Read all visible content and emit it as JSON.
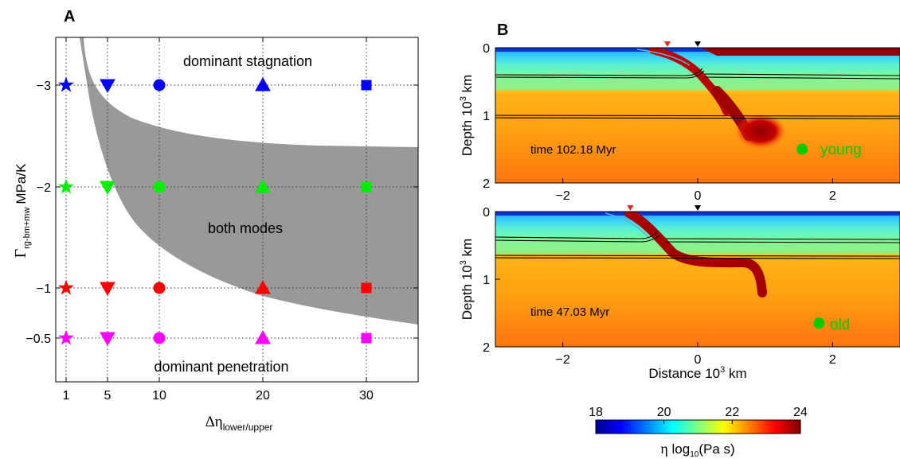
{
  "panel_a": {
    "label": "A",
    "ylabel_symbol": "Γ",
    "ylabel_sub": "rg-bm+mw",
    "ylabel_unit": "MPa/K",
    "xlabel_symbol": "Δη",
    "xlabel_sub": "lower/upper",
    "annotations": [
      "dominant stagnation",
      "both modes",
      "dominant penetration"
    ]
  },
  "panel_b": {
    "label": "B",
    "ylabel_prefix": "Depth 10",
    "ylabel_exp": "3",
    "ylabel_suffix": " km",
    "xlabel_prefix": "Distance 10",
    "xlabel_exp": "3",
    "xlabel_suffix": " km",
    "top": {
      "time_label": "time 102.18 Myr",
      "marker_label": "young"
    },
    "bottom": {
      "time_label": "time 47.03 Myr",
      "marker_label": "old"
    }
  },
  "colorbar": {
    "label_symbol": "η",
    "label_text": " log",
    "label_sub": "10",
    "label_unit": "(Pa s)",
    "ticks": [
      18,
      20,
      22,
      24
    ],
    "range": [
      18,
      24
    ]
  },
  "colors": {
    "blue": "#0000ff",
    "green": "#00ee00",
    "red": "#ff0000",
    "magenta": "#ff00ff",
    "region": "#999999",
    "label_green": "#00cc00"
  },
  "chart_data": [
    {
      "type": "scatter",
      "x_ticks": [
        1,
        5,
        10,
        20,
        30
      ],
      "y_ticks": [
        "-3",
        "-2",
        "-1",
        "-0.5"
      ],
      "xlim": [
        0,
        35
      ],
      "y_levels": [
        -3,
        -2,
        -1,
        -0.5
      ],
      "grid": true,
      "series": [
        {
          "marker": "star",
          "color": "#0000ff",
          "x": [
            1
          ],
          "y": [
            -3
          ]
        },
        {
          "marker": "triangle-down",
          "color": "#0000ff",
          "x": [
            5
          ],
          "y": [
            -3
          ]
        },
        {
          "marker": "circle",
          "color": "#0000ff",
          "x": [
            10
          ],
          "y": [
            -3
          ]
        },
        {
          "marker": "triangle-up",
          "color": "#0000ff",
          "x": [
            20
          ],
          "y": [
            -3
          ]
        },
        {
          "marker": "square",
          "color": "#0000ff",
          "x": [
            30
          ],
          "y": [
            -3
          ]
        },
        {
          "marker": "star",
          "color": "#00ee00",
          "x": [
            1
          ],
          "y": [
            -2
          ]
        },
        {
          "marker": "triangle-down",
          "color": "#00ee00",
          "x": [
            5
          ],
          "y": [
            -2
          ]
        },
        {
          "marker": "circle",
          "color": "#00ee00",
          "x": [
            10
          ],
          "y": [
            -2
          ]
        },
        {
          "marker": "triangle-up",
          "color": "#00ee00",
          "x": [
            20
          ],
          "y": [
            -2
          ]
        },
        {
          "marker": "square",
          "color": "#00ee00",
          "x": [
            30
          ],
          "y": [
            -2
          ]
        },
        {
          "marker": "star",
          "color": "#ff0000",
          "x": [
            1
          ],
          "y": [
            -1
          ]
        },
        {
          "marker": "triangle-down",
          "color": "#ff0000",
          "x": [
            5
          ],
          "y": [
            -1
          ]
        },
        {
          "marker": "circle",
          "color": "#ff0000",
          "x": [
            10
          ],
          "y": [
            -1
          ]
        },
        {
          "marker": "triangle-up",
          "color": "#ff0000",
          "x": [
            20
          ],
          "y": [
            -1
          ]
        },
        {
          "marker": "square",
          "color": "#ff0000",
          "x": [
            30
          ],
          "y": [
            -1
          ]
        },
        {
          "marker": "star",
          "color": "#ff00ff",
          "x": [
            1
          ],
          "y": [
            -0.5
          ]
        },
        {
          "marker": "triangle-down",
          "color": "#ff00ff",
          "x": [
            5
          ],
          "y": [
            -0.5
          ]
        },
        {
          "marker": "circle",
          "color": "#ff00ff",
          "x": [
            10
          ],
          "y": [
            -0.5
          ]
        },
        {
          "marker": "triangle-up",
          "color": "#ff00ff",
          "x": [
            20
          ],
          "y": [
            -0.5
          ]
        },
        {
          "marker": "square",
          "color": "#ff00ff",
          "x": [
            30
          ],
          "y": [
            -0.5
          ]
        }
      ]
    },
    {
      "type": "heatmap",
      "x_ticks": [
        -2,
        0,
        2
      ],
      "y_ticks": [
        0,
        1,
        2
      ],
      "xlim": [
        -3,
        3
      ],
      "ylim": [
        0,
        2
      ],
      "value_range": [
        18,
        24
      ],
      "markers_x": [
        -0.45,
        0.0
      ],
      "green_dot": [
        1.55,
        1.5
      ]
    },
    {
      "type": "heatmap",
      "x_ticks": [
        -2,
        0,
        2
      ],
      "y_ticks": [
        0,
        1,
        2
      ],
      "xlim": [
        -3,
        3
      ],
      "ylim": [
        0,
        2
      ],
      "value_range": [
        18,
        24
      ],
      "markers_x": [
        -1.0,
        0.0
      ],
      "green_dot": [
        1.8,
        1.65
      ]
    }
  ]
}
